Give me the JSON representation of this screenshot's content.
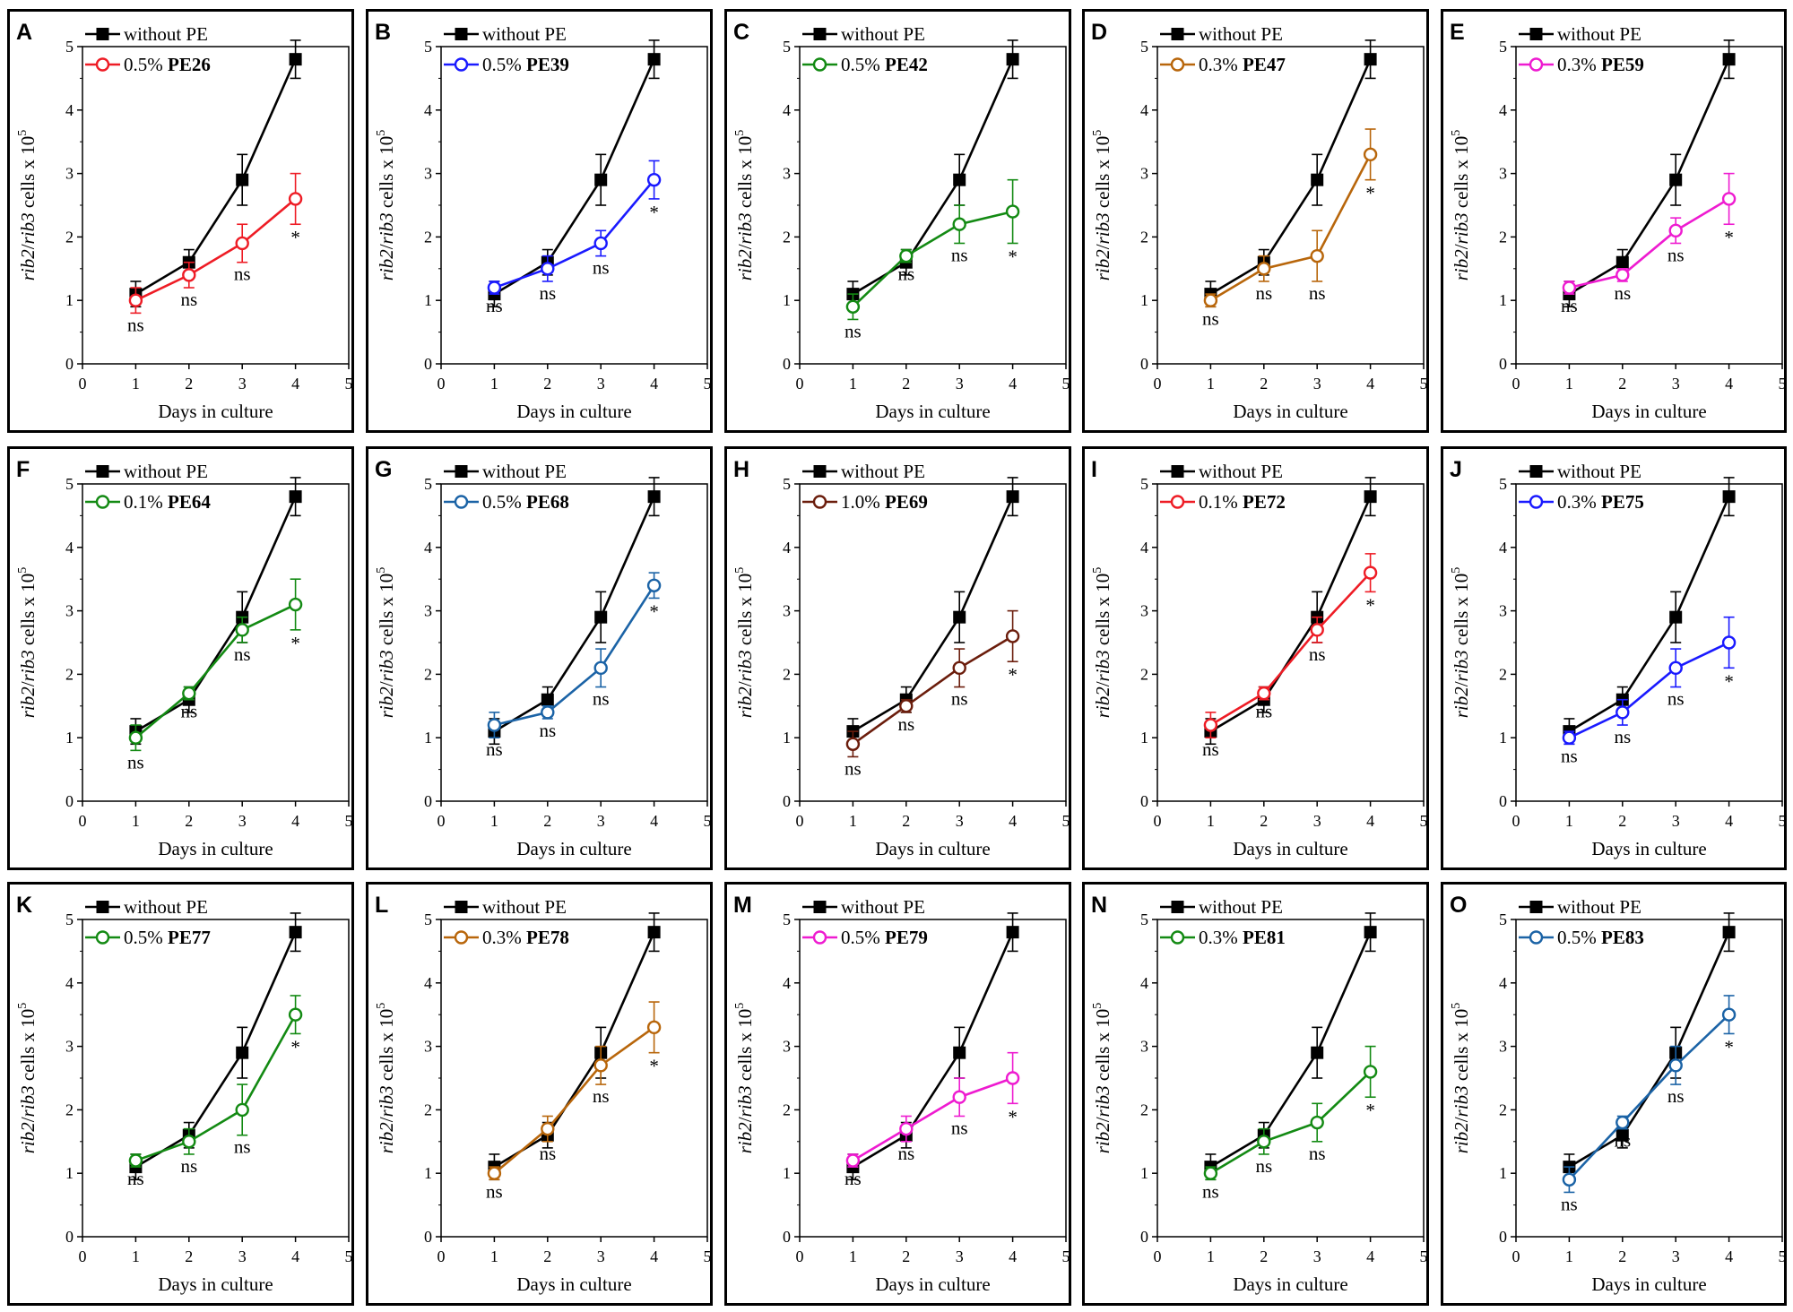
{
  "figure": {
    "xlabel": "Days in culture",
    "ylabel_italic_1": "rib2",
    "ylabel_slash": "/",
    "ylabel_italic_2": "rib3",
    "ylabel_rest": " cells x 10",
    "ylabel_sup": "5",
    "reference_series_name": "without PE",
    "reference_color": "#000000"
  },
  "chart_data": [
    {
      "type": "line",
      "panel": "A",
      "categories": [
        1,
        2,
        3,
        4
      ],
      "xlim": [
        0,
        5
      ],
      "ylim": [
        0,
        5
      ],
      "series": [
        {
          "name": "without PE",
          "values": [
            1.1,
            1.6,
            2.9,
            4.8
          ],
          "errors": [
            0.2,
            0.2,
            0.4,
            0.3
          ],
          "color": "#000000",
          "marker": "filled-square"
        },
        {
          "name_prefix": "0.5%",
          "name_bold": "PE26",
          "values": [
            1.0,
            1.4,
            1.9,
            2.6
          ],
          "errors": [
            0.2,
            0.2,
            0.3,
            0.4
          ],
          "color": "#ee1c25",
          "marker": "open-circle"
        }
      ],
      "significance": [
        "ns",
        "ns",
        "ns",
        "*"
      ]
    },
    {
      "type": "line",
      "panel": "B",
      "categories": [
        1,
        2,
        3,
        4
      ],
      "xlim": [
        0,
        5
      ],
      "ylim": [
        0,
        5
      ],
      "series": [
        {
          "name": "without PE",
          "values": [
            1.1,
            1.6,
            2.9,
            4.8
          ],
          "errors": [
            0.2,
            0.2,
            0.4,
            0.3
          ],
          "color": "#000000",
          "marker": "filled-square"
        },
        {
          "name_prefix": "0.5%",
          "name_bold": "PE39",
          "values": [
            1.2,
            1.5,
            1.9,
            2.9
          ],
          "errors": [
            0.1,
            0.2,
            0.2,
            0.3
          ],
          "color": "#1a1aff",
          "marker": "open-circle"
        }
      ],
      "significance": [
        "ns",
        "ns",
        "ns",
        "*"
      ]
    },
    {
      "type": "line",
      "panel": "C",
      "categories": [
        1,
        2,
        3,
        4
      ],
      "xlim": [
        0,
        5
      ],
      "ylim": [
        0,
        5
      ],
      "series": [
        {
          "name": "without PE",
          "values": [
            1.1,
            1.6,
            2.9,
            4.8
          ],
          "errors": [
            0.2,
            0.2,
            0.4,
            0.3
          ],
          "color": "#000000",
          "marker": "filled-square"
        },
        {
          "name_prefix": "0.5%",
          "name_bold": "PE42",
          "values": [
            0.9,
            1.7,
            2.2,
            2.4
          ],
          "errors": [
            0.2,
            0.1,
            0.3,
            0.5
          ],
          "color": "#138a13",
          "marker": "open-circle"
        }
      ],
      "significance": [
        "ns",
        "ns",
        "ns",
        "*"
      ]
    },
    {
      "type": "line",
      "panel": "D",
      "categories": [
        1,
        2,
        3,
        4
      ],
      "xlim": [
        0,
        5
      ],
      "ylim": [
        0,
        5
      ],
      "series": [
        {
          "name": "without PE",
          "values": [
            1.1,
            1.6,
            2.9,
            4.8
          ],
          "errors": [
            0.2,
            0.2,
            0.4,
            0.3
          ],
          "color": "#000000",
          "marker": "filled-square"
        },
        {
          "name_prefix": "0.3%",
          "name_bold": "PE47",
          "values": [
            1.0,
            1.5,
            1.7,
            3.3
          ],
          "errors": [
            0.1,
            0.2,
            0.4,
            0.4
          ],
          "color": "#b8660b",
          "marker": "open-circle"
        }
      ],
      "significance": [
        "ns",
        "ns",
        "ns",
        "*"
      ]
    },
    {
      "type": "line",
      "panel": "E",
      "categories": [
        1,
        2,
        3,
        4
      ],
      "xlim": [
        0,
        5
      ],
      "ylim": [
        0,
        5
      ],
      "series": [
        {
          "name": "without PE",
          "values": [
            1.1,
            1.6,
            2.9,
            4.8
          ],
          "errors": [
            0.2,
            0.2,
            0.4,
            0.3
          ],
          "color": "#000000",
          "marker": "filled-square"
        },
        {
          "name_prefix": "0.3%",
          "name_bold": "PE59",
          "values": [
            1.2,
            1.4,
            2.1,
            2.6
          ],
          "errors": [
            0.1,
            0.1,
            0.2,
            0.4
          ],
          "color": "#ee1bd0",
          "marker": "open-circle"
        }
      ],
      "significance": [
        "ns",
        "ns",
        "ns",
        "*"
      ]
    },
    {
      "type": "line",
      "panel": "F",
      "categories": [
        1,
        2,
        3,
        4
      ],
      "xlim": [
        0,
        5
      ],
      "ylim": [
        0,
        5
      ],
      "series": [
        {
          "name": "without PE",
          "values": [
            1.1,
            1.6,
            2.9,
            4.8
          ],
          "errors": [
            0.2,
            0.2,
            0.4,
            0.3
          ],
          "color": "#000000",
          "marker": "filled-square"
        },
        {
          "name_prefix": "0.1%",
          "name_bold": "PE64",
          "values": [
            1.0,
            1.7,
            2.7,
            3.1
          ],
          "errors": [
            0.2,
            0.1,
            0.2,
            0.4
          ],
          "color": "#138a13",
          "marker": "open-circle"
        }
      ],
      "significance": [
        "ns",
        "ns",
        "ns",
        "*"
      ]
    },
    {
      "type": "line",
      "panel": "G",
      "categories": [
        1,
        2,
        3,
        4
      ],
      "xlim": [
        0,
        5
      ],
      "ylim": [
        0,
        5
      ],
      "series": [
        {
          "name": "without PE",
          "values": [
            1.1,
            1.6,
            2.9,
            4.8
          ],
          "errors": [
            0.2,
            0.2,
            0.4,
            0.3
          ],
          "color": "#000000",
          "marker": "filled-square"
        },
        {
          "name_prefix": "0.5%",
          "name_bold": "PE68",
          "values": [
            1.2,
            1.4,
            2.1,
            3.4
          ],
          "errors": [
            0.2,
            0.1,
            0.3,
            0.2
          ],
          "color": "#1b63a6",
          "marker": "open-circle"
        }
      ],
      "significance": [
        "ns",
        "ns",
        "ns",
        "*"
      ]
    },
    {
      "type": "line",
      "panel": "H",
      "categories": [
        1,
        2,
        3,
        4
      ],
      "xlim": [
        0,
        5
      ],
      "ylim": [
        0,
        5
      ],
      "series": [
        {
          "name": "without PE",
          "values": [
            1.1,
            1.6,
            2.9,
            4.8
          ],
          "errors": [
            0.2,
            0.2,
            0.4,
            0.3
          ],
          "color": "#000000",
          "marker": "filled-square"
        },
        {
          "name_prefix": "1.0%",
          "name_bold": "PE69",
          "values": [
            0.9,
            1.5,
            2.1,
            2.6
          ],
          "errors": [
            0.2,
            0.1,
            0.3,
            0.4
          ],
          "color": "#6b1d0c",
          "marker": "open-circle"
        }
      ],
      "significance": [
        "ns",
        "ns",
        "ns",
        "*"
      ]
    },
    {
      "type": "line",
      "panel": "I",
      "categories": [
        1,
        2,
        3,
        4
      ],
      "xlim": [
        0,
        5
      ],
      "ylim": [
        0,
        5
      ],
      "series": [
        {
          "name": "without PE",
          "values": [
            1.1,
            1.6,
            2.9,
            4.8
          ],
          "errors": [
            0.2,
            0.2,
            0.4,
            0.3
          ],
          "color": "#000000",
          "marker": "filled-square"
        },
        {
          "name_prefix": "0.1%",
          "name_bold": "PE72",
          "values": [
            1.2,
            1.7,
            2.7,
            3.6
          ],
          "errors": [
            0.2,
            0.1,
            0.2,
            0.3
          ],
          "color": "#ee1c25",
          "marker": "open-circle"
        }
      ],
      "significance": [
        "ns",
        "ns",
        "ns",
        "*"
      ]
    },
    {
      "type": "line",
      "panel": "J",
      "categories": [
        1,
        2,
        3,
        4
      ],
      "xlim": [
        0,
        5
      ],
      "ylim": [
        0,
        5
      ],
      "series": [
        {
          "name": "without PE",
          "values": [
            1.1,
            1.6,
            2.9,
            4.8
          ],
          "errors": [
            0.2,
            0.2,
            0.4,
            0.3
          ],
          "color": "#000000",
          "marker": "filled-square"
        },
        {
          "name_prefix": "0.3%",
          "name_bold": "PE75",
          "values": [
            1.0,
            1.4,
            2.1,
            2.5
          ],
          "errors": [
            0.1,
            0.2,
            0.3,
            0.4
          ],
          "color": "#1a1aff",
          "marker": "open-circle"
        }
      ],
      "significance": [
        "ns",
        "ns",
        "ns",
        "*"
      ]
    },
    {
      "type": "line",
      "panel": "K",
      "categories": [
        1,
        2,
        3,
        4
      ],
      "xlim": [
        0,
        5
      ],
      "ylim": [
        0,
        5
      ],
      "series": [
        {
          "name": "without PE",
          "values": [
            1.1,
            1.6,
            2.9,
            4.8
          ],
          "errors": [
            0.2,
            0.2,
            0.4,
            0.3
          ],
          "color": "#000000",
          "marker": "filled-square"
        },
        {
          "name_prefix": "0.5%",
          "name_bold": "PE77",
          "values": [
            1.2,
            1.5,
            2.0,
            3.5
          ],
          "errors": [
            0.1,
            0.2,
            0.4,
            0.3
          ],
          "color": "#138a13",
          "marker": "open-circle"
        }
      ],
      "significance": [
        "ns",
        "ns",
        "ns",
        "*"
      ]
    },
    {
      "type": "line",
      "panel": "L",
      "categories": [
        1,
        2,
        3,
        4
      ],
      "xlim": [
        0,
        5
      ],
      "ylim": [
        0,
        5
      ],
      "series": [
        {
          "name": "without PE",
          "values": [
            1.1,
            1.6,
            2.9,
            4.8
          ],
          "errors": [
            0.2,
            0.2,
            0.4,
            0.3
          ],
          "color": "#000000",
          "marker": "filled-square"
        },
        {
          "name_prefix": "0.3%",
          "name_bold": "PE78",
          "values": [
            1.0,
            1.7,
            2.7,
            3.3
          ],
          "errors": [
            0.1,
            0.2,
            0.3,
            0.4
          ],
          "color": "#b8660b",
          "marker": "open-circle"
        }
      ],
      "significance": [
        "ns",
        "ns",
        "ns",
        "*"
      ]
    },
    {
      "type": "line",
      "panel": "M",
      "categories": [
        1,
        2,
        3,
        4
      ],
      "xlim": [
        0,
        5
      ],
      "ylim": [
        0,
        5
      ],
      "series": [
        {
          "name": "without PE",
          "values": [
            1.1,
            1.6,
            2.9,
            4.8
          ],
          "errors": [
            0.2,
            0.2,
            0.4,
            0.3
          ],
          "color": "#000000",
          "marker": "filled-square"
        },
        {
          "name_prefix": "0.5%",
          "name_bold": "PE79",
          "values": [
            1.2,
            1.7,
            2.2,
            2.5
          ],
          "errors": [
            0.1,
            0.2,
            0.3,
            0.4
          ],
          "color": "#ee1bd0",
          "marker": "open-circle"
        }
      ],
      "significance": [
        "ns",
        "ns",
        "ns",
        "*"
      ]
    },
    {
      "type": "line",
      "panel": "N",
      "categories": [
        1,
        2,
        3,
        4
      ],
      "xlim": [
        0,
        5
      ],
      "ylim": [
        0,
        5
      ],
      "series": [
        {
          "name": "without PE",
          "values": [
            1.1,
            1.6,
            2.9,
            4.8
          ],
          "errors": [
            0.2,
            0.2,
            0.4,
            0.3
          ],
          "color": "#000000",
          "marker": "filled-square"
        },
        {
          "name_prefix": "0.3%",
          "name_bold": "PE81",
          "values": [
            1.0,
            1.5,
            1.8,
            2.6
          ],
          "errors": [
            0.1,
            0.2,
            0.3,
            0.4
          ],
          "color": "#138a13",
          "marker": "open-circle"
        }
      ],
      "significance": [
        "ns",
        "ns",
        "ns",
        "*"
      ]
    },
    {
      "type": "line",
      "panel": "O",
      "categories": [
        1,
        2,
        3,
        4
      ],
      "xlim": [
        0,
        5
      ],
      "ylim": [
        0,
        5
      ],
      "series": [
        {
          "name": "without PE",
          "values": [
            1.1,
            1.6,
            2.9,
            4.8
          ],
          "errors": [
            0.2,
            0.2,
            0.4,
            0.3
          ],
          "color": "#000000",
          "marker": "filled-square"
        },
        {
          "name_prefix": "0.5%",
          "name_bold": "PE83",
          "values": [
            0.9,
            1.8,
            2.7,
            3.5
          ],
          "errors": [
            0.2,
            0.1,
            0.3,
            0.3
          ],
          "color": "#1b63a6",
          "marker": "open-circle"
        }
      ],
      "significance": [
        "ns",
        "ns",
        "ns",
        "*"
      ]
    }
  ]
}
